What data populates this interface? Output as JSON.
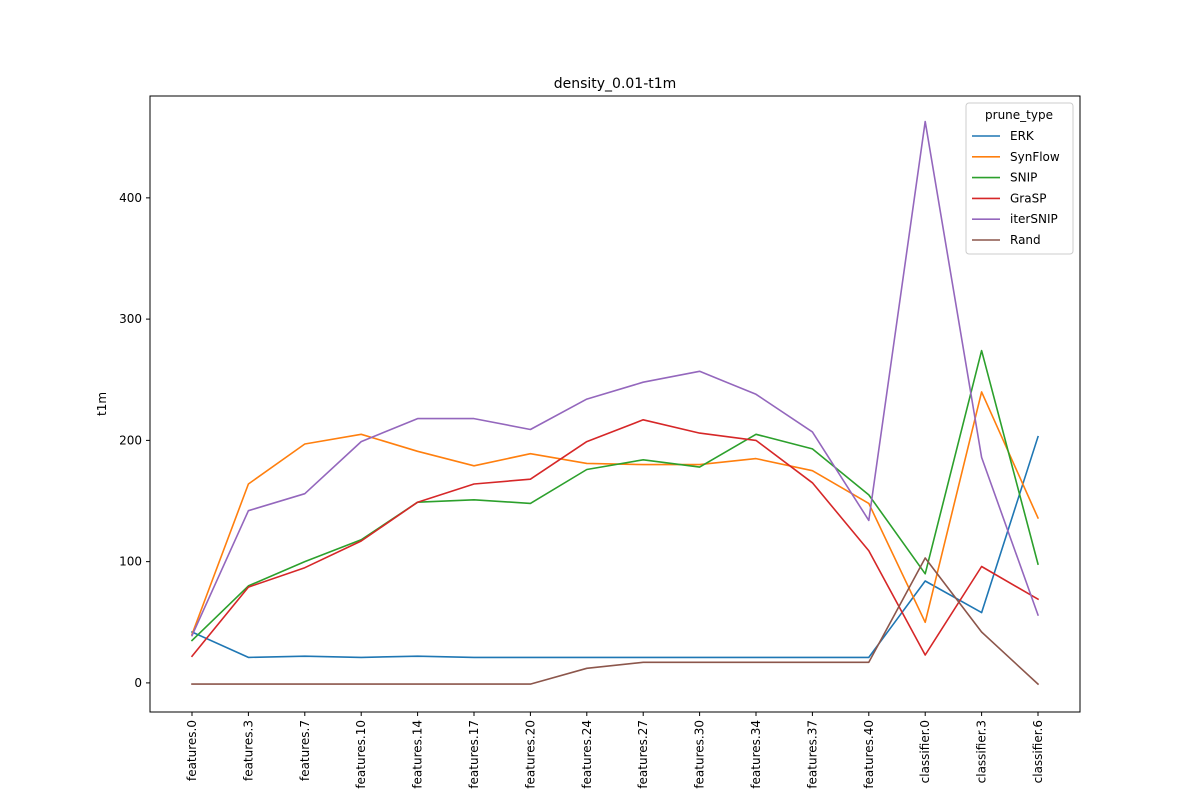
{
  "chart_data": {
    "type": "line",
    "title": "density_0.01-t1m",
    "xlabel": "",
    "ylabel": "t1m",
    "ylim": [
      -24,
      484
    ],
    "yticks": [
      0,
      100,
      200,
      300,
      400
    ],
    "grid": false,
    "legend": {
      "title": "prune_type",
      "placement": "top-right"
    },
    "categories": [
      "features.0",
      "features.3",
      "features.7",
      "features.10",
      "features.14",
      "features.17",
      "features.20",
      "features.24",
      "features.27",
      "features.30",
      "features.34",
      "features.37",
      "features.40",
      "classifier.0",
      "classifier.3",
      "classifier.6"
    ],
    "series": [
      {
        "name": "ERK",
        "color": "#1f77b4",
        "values": [
          42,
          21,
          22,
          21,
          22,
          21,
          21,
          21,
          21,
          21,
          21,
          21,
          21,
          84,
          58,
          203
        ]
      },
      {
        "name": "SynFlow",
        "color": "#ff7f0e",
        "values": [
          40,
          164,
          197,
          205,
          191,
          179,
          189,
          181,
          180,
          180,
          185,
          175,
          148,
          50,
          240,
          136
        ]
      },
      {
        "name": "SNIP",
        "color": "#2ca02c",
        "values": [
          35,
          80,
          100,
          118,
          149,
          151,
          148,
          176,
          184,
          178,
          205,
          193,
          155,
          90,
          274,
          98
        ]
      },
      {
        "name": "GraSP",
        "color": "#d62728",
        "values": [
          22,
          79,
          95,
          117,
          149,
          164,
          168,
          199,
          217,
          206,
          200,
          165,
          109,
          23,
          96,
          69
        ]
      },
      {
        "name": "iterSNIP",
        "color": "#9467bd",
        "values": [
          39,
          142,
          156,
          199,
          218,
          218,
          209,
          234,
          248,
          257,
          238,
          207,
          134,
          463,
          186,
          56
        ]
      },
      {
        "name": "Rand",
        "color": "#8c564b",
        "values": [
          -1,
          -1,
          -1,
          -1,
          -1,
          -1,
          -1,
          12,
          17,
          17,
          17,
          17,
          17,
          103,
          42,
          -1
        ]
      }
    ]
  }
}
